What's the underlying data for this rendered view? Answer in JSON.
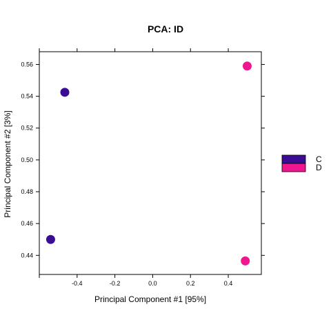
{
  "chart_data": {
    "type": "scatter",
    "title": "PCA: ID",
    "xlabel": "Principal Component #1 [95%]",
    "ylabel": "Principal Component #2 [3%]",
    "xlim": [
      -0.6,
      0.575
    ],
    "ylim": [
      0.428,
      0.568
    ],
    "x_ticks": [
      -0.4,
      -0.2,
      0.0,
      0.2,
      0.4
    ],
    "x_tick_labels": [
      "-0.4",
      "-0.2",
      "0.0",
      "0.2",
      "0.4"
    ],
    "y_ticks": [
      0.44,
      0.46,
      0.48,
      0.5,
      0.52,
      0.54,
      0.56
    ],
    "y_tick_labels": [
      "0.44",
      "0.46",
      "0.48",
      "0.50",
      "0.52",
      "0.54",
      "0.56"
    ],
    "grid": false,
    "legend_position": "right",
    "series": [
      {
        "name": "C",
        "color": "#3a0d94",
        "x": [
          -0.465,
          -0.54
        ],
        "y": [
          0.5425,
          0.45
        ]
      },
      {
        "name": "D",
        "color": "#f0168f",
        "x": [
          0.5,
          0.49
        ],
        "y": [
          0.559,
          0.4365
        ]
      }
    ]
  }
}
